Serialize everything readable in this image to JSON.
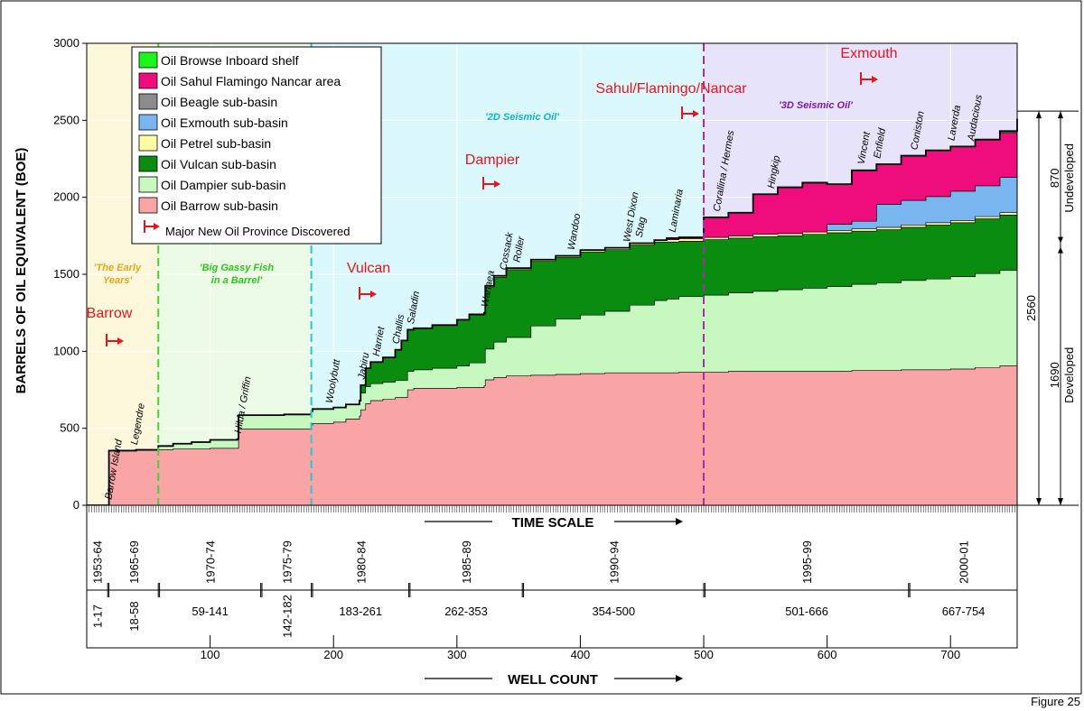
{
  "chart_data": {
    "type": "area",
    "stacked": true,
    "title": "",
    "ylabel": "BARRELS OF OIL EQUIVALENT (BOE)",
    "xlabel": "WELL COUNT",
    "time_scale_label": "TIME  SCALE",
    "figure_label": "Figure 25",
    "ylim": [
      0,
      3000
    ],
    "xlim": [
      0,
      754
    ],
    "yticks": [
      0,
      500,
      1000,
      1500,
      2000,
      2500,
      3000
    ],
    "xticks": [
      100,
      200,
      300,
      400,
      500,
      600,
      700
    ],
    "x": [
      17,
      18,
      40,
      58,
      70,
      85,
      100,
      122,
      123,
      140,
      160,
      182,
      183,
      200,
      210,
      221,
      222,
      226,
      230,
      240,
      250,
      255,
      260,
      265,
      280,
      300,
      310,
      322,
      323,
      330,
      340,
      360,
      380,
      400,
      420,
      440,
      460,
      470,
      480,
      500,
      520,
      540,
      560,
      580,
      600,
      620,
      640,
      660,
      680,
      700,
      720,
      740,
      754
    ],
    "series": [
      {
        "name": "Oil Barrow sub-basin",
        "color": "#f9a5a5",
        "values": [
          0,
          355,
          360,
          360,
          365,
          365,
          370,
          370,
          495,
          495,
          495,
          520,
          530,
          540,
          560,
          580,
          620,
          660,
          680,
          690,
          700,
          700,
          750,
          760,
          760,
          765,
          765,
          775,
          815,
          830,
          840,
          845,
          850,
          855,
          860,
          860,
          860,
          860,
          865,
          865,
          870,
          870,
          870,
          870,
          870,
          875,
          875,
          880,
          880,
          885,
          895,
          905,
          910
        ]
      },
      {
        "name": "Oil Dampier sub-basin",
        "color": "#c6f8c0",
        "values": [
          0,
          0,
          0,
          25,
          35,
          45,
          55,
          60,
          90,
          90,
          95,
          90,
          95,
          95,
          95,
          100,
          110,
          110,
          110,
          110,
          110,
          110,
          120,
          120,
          130,
          140,
          160,
          150,
          200,
          230,
          250,
          320,
          360,
          380,
          400,
          440,
          470,
          480,
          490,
          500,
          510,
          520,
          530,
          540,
          550,
          560,
          570,
          580,
          590,
          600,
          610,
          620,
          630
        ]
      },
      {
        "name": "Oil Vulcan sub-basin",
        "color": "#0a8c11",
        "values": [
          0,
          0,
          0,
          0,
          0,
          0,
          0,
          0,
          0,
          0,
          0,
          0,
          0,
          0,
          0,
          0,
          50,
          120,
          140,
          160,
          200,
          260,
          270,
          270,
          280,
          300,
          310,
          320,
          400,
          420,
          440,
          420,
          400,
          410,
          400,
          390,
          380,
          370,
          360,
          360,
          355,
          355,
          350,
          350,
          350,
          345,
          345,
          345,
          350,
          350,
          355,
          360,
          365
        ]
      },
      {
        "name": "Oil Petrel sub-basin",
        "color": "#fffca3",
        "values": [
          0,
          0,
          0,
          0,
          0,
          0,
          0,
          0,
          0,
          0,
          0,
          0,
          0,
          0,
          0,
          0,
          0,
          0,
          0,
          0,
          0,
          0,
          0,
          0,
          0,
          0,
          5,
          5,
          10,
          10,
          10,
          10,
          10,
          12,
          12,
          12,
          12,
          15,
          15,
          15,
          15,
          15,
          15,
          15,
          15,
          15,
          15,
          15,
          15,
          15,
          15,
          15,
          15
        ]
      },
      {
        "name": "Oil Exmouth sub-basin",
        "color": "#79b6ef",
        "values": [
          0,
          0,
          0,
          0,
          0,
          0,
          0,
          0,
          0,
          0,
          0,
          0,
          0,
          0,
          0,
          0,
          0,
          0,
          0,
          0,
          0,
          0,
          0,
          0,
          0,
          0,
          0,
          0,
          0,
          0,
          0,
          0,
          0,
          0,
          0,
          0,
          0,
          0,
          0,
          0,
          0,
          0,
          0,
          0,
          40,
          50,
          150,
          160,
          170,
          190,
          200,
          230,
          280
        ]
      },
      {
        "name": "Oil Beagle sub-basin",
        "color": "#8c8c8c",
        "values": [
          0,
          0,
          0,
          0,
          0,
          0,
          0,
          0,
          0,
          0,
          0,
          0,
          0,
          0,
          0,
          0,
          0,
          0,
          0,
          0,
          0,
          0,
          0,
          0,
          0,
          0,
          0,
          0,
          0,
          0,
          0,
          0,
          0,
          0,
          0,
          0,
          0,
          0,
          0,
          0,
          0,
          0,
          0,
          0,
          0,
          0,
          0,
          0,
          0,
          0,
          0,
          0,
          0
        ]
      },
      {
        "name": "Oil  Sahul Flamingo Nancar area",
        "color": "#ef0d7e",
        "values": [
          0,
          0,
          0,
          0,
          0,
          0,
          0,
          0,
          0,
          0,
          0,
          0,
          0,
          0,
          0,
          0,
          0,
          0,
          0,
          0,
          0,
          0,
          0,
          0,
          0,
          0,
          0,
          0,
          0,
          0,
          0,
          0,
          0,
          0,
          0,
          0,
          0,
          10,
          10,
          130,
          150,
          260,
          300,
          320,
          260,
          330,
          260,
          290,
          300,
          290,
          300,
          290,
          300
        ]
      },
      {
        "name": "Oil  Browse Inboard shelf",
        "color": "#1cf51c",
        "values": [
          0,
          0,
          0,
          0,
          0,
          0,
          0,
          0,
          0,
          0,
          0,
          0,
          0,
          0,
          0,
          0,
          0,
          0,
          0,
          0,
          0,
          0,
          0,
          0,
          0,
          0,
          0,
          0,
          0,
          0,
          0,
          0,
          0,
          0,
          0,
          0,
          0,
          0,
          0,
          0,
          0,
          0,
          0,
          0,
          0,
          0,
          0,
          0,
          0,
          0,
          0,
          10,
          10
        ]
      }
    ],
    "legend_extra": "Major New Oil Province Discovered",
    "eras": [
      {
        "label": "'The Early Years'",
        "x_start": 0,
        "x_end": 58,
        "color": "#fdf8dc",
        "text_color": "#e5a61c"
      },
      {
        "label": "'Big Gassy Fish in a Barrel'",
        "x_start": 58,
        "x_end": 182,
        "color": "#ecfbe5",
        "text_color": "#2fc31f"
      },
      {
        "label": "'2D Seismic Oil'",
        "x_start": 182,
        "x_end": 500,
        "color": "#dbf9fc",
        "text_color": "#0db1c9"
      },
      {
        "label": "'3D Seismic Oil'",
        "x_start": 500,
        "x_end": 754,
        "color": "#e6e3fa",
        "text_color": "#7a1aa0"
      }
    ],
    "era_dividers": [
      {
        "x": 58,
        "color": "#44d337"
      },
      {
        "x": 182,
        "color": "#27c6d8"
      },
      {
        "x": 500,
        "color": "#a42fa4"
      }
    ],
    "provinces": [
      {
        "label": "Barrow",
        "x": 17
      },
      {
        "label": "Vulcan",
        "x": 222
      },
      {
        "label": "Dampier",
        "x": 323
      },
      {
        "label": "Sahul/Flamingo/Nancar",
        "x": 475
      },
      {
        "label": "Exmouth",
        "x": 630
      }
    ],
    "fields": [
      {
        "label": "Barrow Island",
        "x": 17
      },
      {
        "label": "Legendre",
        "x": 38
      },
      {
        "label": "Hilda / Griffin",
        "x": 122
      },
      {
        "label": "Woolybutt",
        "x": 196
      },
      {
        "label": "Jabiru",
        "x": 222
      },
      {
        "label": "Harriet",
        "x": 234
      },
      {
        "label": "Challis",
        "x": 250
      },
      {
        "label": "Saladin",
        "x": 262
      },
      {
        "label": "Wanaea",
        "x": 322
      },
      {
        "label": "Cossack",
        "x": 337
      },
      {
        "label": "Roller",
        "x": 348
      },
      {
        "label": "Wandoo",
        "x": 392
      },
      {
        "label": "West Dixon",
        "x": 437
      },
      {
        "label": "Stag",
        "x": 447
      },
      {
        "label": "Laminaria",
        "x": 474
      },
      {
        "label": "Corallina / Hermes",
        "x": 510
      },
      {
        "label": "Hingkip",
        "x": 554
      },
      {
        "label": "Vincent",
        "x": 627
      },
      {
        "label": "Enfield",
        "x": 640
      },
      {
        "label": "Coniston",
        "x": 670
      },
      {
        "label": "Laverda",
        "x": 700
      },
      {
        "label": "Audacious",
        "x": 716
      }
    ],
    "time_periods": [
      {
        "label": "1953-64",
        "x_start": 0,
        "x_end": 17
      },
      {
        "label": "1965-69",
        "x_start": 18,
        "x_end": 58
      },
      {
        "label": "1970-74",
        "x_start": 59,
        "x_end": 141
      },
      {
        "label": "1975-79",
        "x_start": 142,
        "x_end": 182
      },
      {
        "label": "1980-84",
        "x_start": 183,
        "x_end": 261
      },
      {
        "label": "1985-89",
        "x_start": 262,
        "x_end": 353
      },
      {
        "label": "1990-94",
        "x_start": 354,
        "x_end": 500
      },
      {
        "label": "1995-99",
        "x_start": 501,
        "x_end": 666
      },
      {
        "label": "2000-01",
        "x_start": 667,
        "x_end": 754
      }
    ],
    "well_ranges": [
      "1-17",
      "18-58",
      "59-141",
      "142-182",
      "183-261",
      "262-353",
      "354-500",
      "501-666",
      "667-754"
    ],
    "reserves": {
      "total": "2560",
      "developed_value": "1690",
      "developed_label": "Developed",
      "undeveloped_value": "870",
      "undeveloped_label": "Undeveloped"
    }
  }
}
